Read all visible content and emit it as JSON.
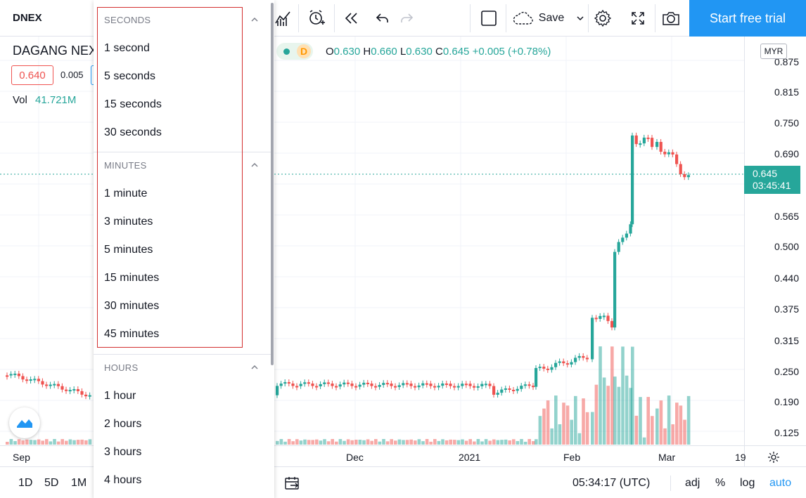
{
  "toolbar": {
    "symbol": "DNEX",
    "save_label": "Save",
    "trial_label": "Start free trial",
    "icons": [
      "indicators-icon",
      "alert-icon",
      "replay-icon",
      "undo-icon",
      "redo-icon",
      "layout-icon",
      "cloud-save-icon",
      "settings-icon",
      "fullscreen-icon",
      "snapshot-icon"
    ]
  },
  "legend": {
    "title": "DAGANG NEXCHANGE BHD",
    "bid": "0.640",
    "spread": "0.005",
    "vol_label": "Vol",
    "vol_value": "41.721M",
    "interval": "D",
    "open_label": "O",
    "open": "0.630",
    "high_label": "H",
    "high": "0.660",
    "low_label": "L",
    "low": "0.630",
    "close_label": "C",
    "close": "0.645",
    "change": "+0.005 (+0.78%)"
  },
  "price_axis": {
    "currency": "MYR",
    "ticks": [
      "0.875",
      "0.815",
      "0.750",
      "0.690",
      "0.565",
      "0.500",
      "0.440",
      "0.375",
      "0.315",
      "0.250",
      "0.190",
      "0.125"
    ],
    "last_price": "0.645",
    "countdown": "03:45:41"
  },
  "time_axis": {
    "ticks": [
      "Sep",
      "Dec",
      "2021",
      "Feb",
      "Mar",
      "19"
    ]
  },
  "bottom_bar": {
    "ranges": [
      "1D",
      "5D",
      "1M"
    ],
    "clock": "05:34:17 (UTC)",
    "adj": "adj",
    "percent": "%",
    "log": "log",
    "auto": "auto"
  },
  "dropdown": {
    "seconds_header": "SECONDS",
    "seconds": [
      "1 second",
      "5 seconds",
      "15 seconds",
      "30 seconds"
    ],
    "minutes_header": "MINUTES",
    "minutes": [
      "1 minute",
      "3 minutes",
      "5 minutes",
      "15 minutes",
      "30 minutes",
      "45 minutes"
    ],
    "hours_header": "HOURS",
    "hours": [
      "1 hour",
      "2 hours",
      "3 hours",
      "4 hours"
    ]
  },
  "colors": {
    "up": "#26a69a",
    "down": "#ef5350",
    "accent": "#2196f3",
    "highlight_border": "#d32f2f"
  }
}
